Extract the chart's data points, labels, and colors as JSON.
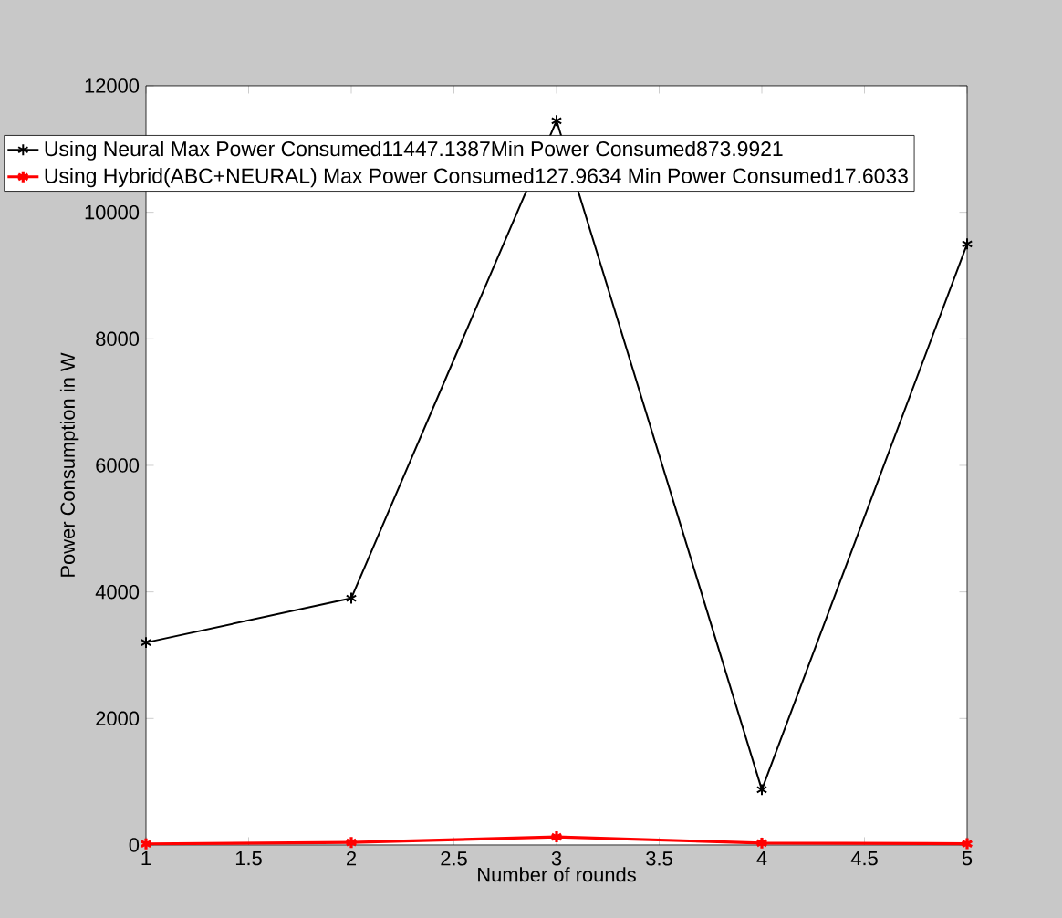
{
  "chart_data": {
    "type": "line",
    "xlabel": "Number of rounds",
    "ylabel": "Power Consumption in W",
    "x": [
      1,
      2,
      3,
      4,
      5
    ],
    "series": [
      {
        "name": "Using Neural Max Power Consumed11447.1387Min Power Consumed873.9921",
        "color": "#000000",
        "values": [
          3200,
          3900,
          11447.1387,
          873.9921,
          9500
        ]
      },
      {
        "name": "Using Hybrid(ABC+NEURAL) Max Power Consumed127.9634 Min Power Consumed17.6033",
        "color": "#ff0000",
        "values": [
          17.6033,
          40,
          127.9634,
          30,
          20
        ]
      }
    ],
    "xlim": [
      1,
      5
    ],
    "xticks": [
      1,
      1.5,
      2,
      2.5,
      3,
      3.5,
      4,
      4.5,
      5
    ],
    "ylim": [
      0,
      12000
    ],
    "yticks": [
      0,
      2000,
      4000,
      6000,
      8000,
      10000,
      12000
    ],
    "legend": "top",
    "marker": "cross",
    "line_style": "solid"
  }
}
